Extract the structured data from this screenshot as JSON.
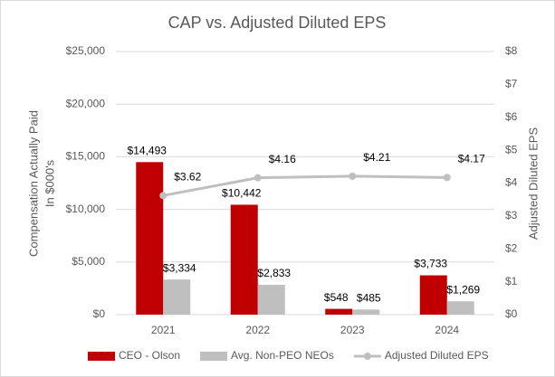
{
  "chart_data": {
    "type": "bar-line",
    "title": "CAP vs. Adjusted Diluted EPS",
    "y_label": [
      "Compensation Actually Paid",
      "In $000's"
    ],
    "y2_label": "Adjusted Diluted EPS",
    "categories": [
      "2021",
      "2022",
      "2023",
      "2024"
    ],
    "series": [
      {
        "name": "CEO - Olson",
        "color": "#c00000",
        "kind": "bar",
        "values": [
          14493,
          10442,
          548,
          3733
        ],
        "value_labels": [
          "$14,493",
          "$10,442",
          "$548",
          "$3,733"
        ]
      },
      {
        "name": "Avg. Non-PEO NEOs",
        "color": "#bfbfbf",
        "kind": "bar",
        "values": [
          3334,
          2833,
          485,
          1269
        ],
        "value_labels": [
          "$3,334",
          "$2,833",
          "$485",
          "$1,269"
        ]
      },
      {
        "name": "Adjusted Diluted EPS",
        "color": "#bfbfbf",
        "kind": "line",
        "axis": "y2",
        "values": [
          3.62,
          4.16,
          4.21,
          4.17
        ],
        "value_labels": [
          "$3.62",
          "$4.16",
          "$4.21",
          "$4.17"
        ]
      }
    ],
    "ylim": [
      0,
      25000
    ],
    "yticks": [
      {
        "value": 0,
        "label": "$0"
      },
      {
        "value": 5000,
        "label": "$5,000"
      },
      {
        "value": 10000,
        "label": "$10,000"
      },
      {
        "value": 15000,
        "label": "$15,000"
      },
      {
        "value": 20000,
        "label": "$20,000"
      },
      {
        "value": 25000,
        "label": "$25,000"
      }
    ],
    "y2lim": [
      0,
      8
    ],
    "y2ticks": [
      {
        "value": 0,
        "label": "$0"
      },
      {
        "value": 1,
        "label": "$1"
      },
      {
        "value": 2,
        "label": "$2"
      },
      {
        "value": 3,
        "label": "$3"
      },
      {
        "value": 4,
        "label": "$4"
      },
      {
        "value": 5,
        "label": "$5"
      },
      {
        "value": 6,
        "label": "$6"
      },
      {
        "value": 7,
        "label": "$7"
      },
      {
        "value": 8,
        "label": "$8"
      }
    ],
    "grid": true,
    "legend": "bottom"
  }
}
